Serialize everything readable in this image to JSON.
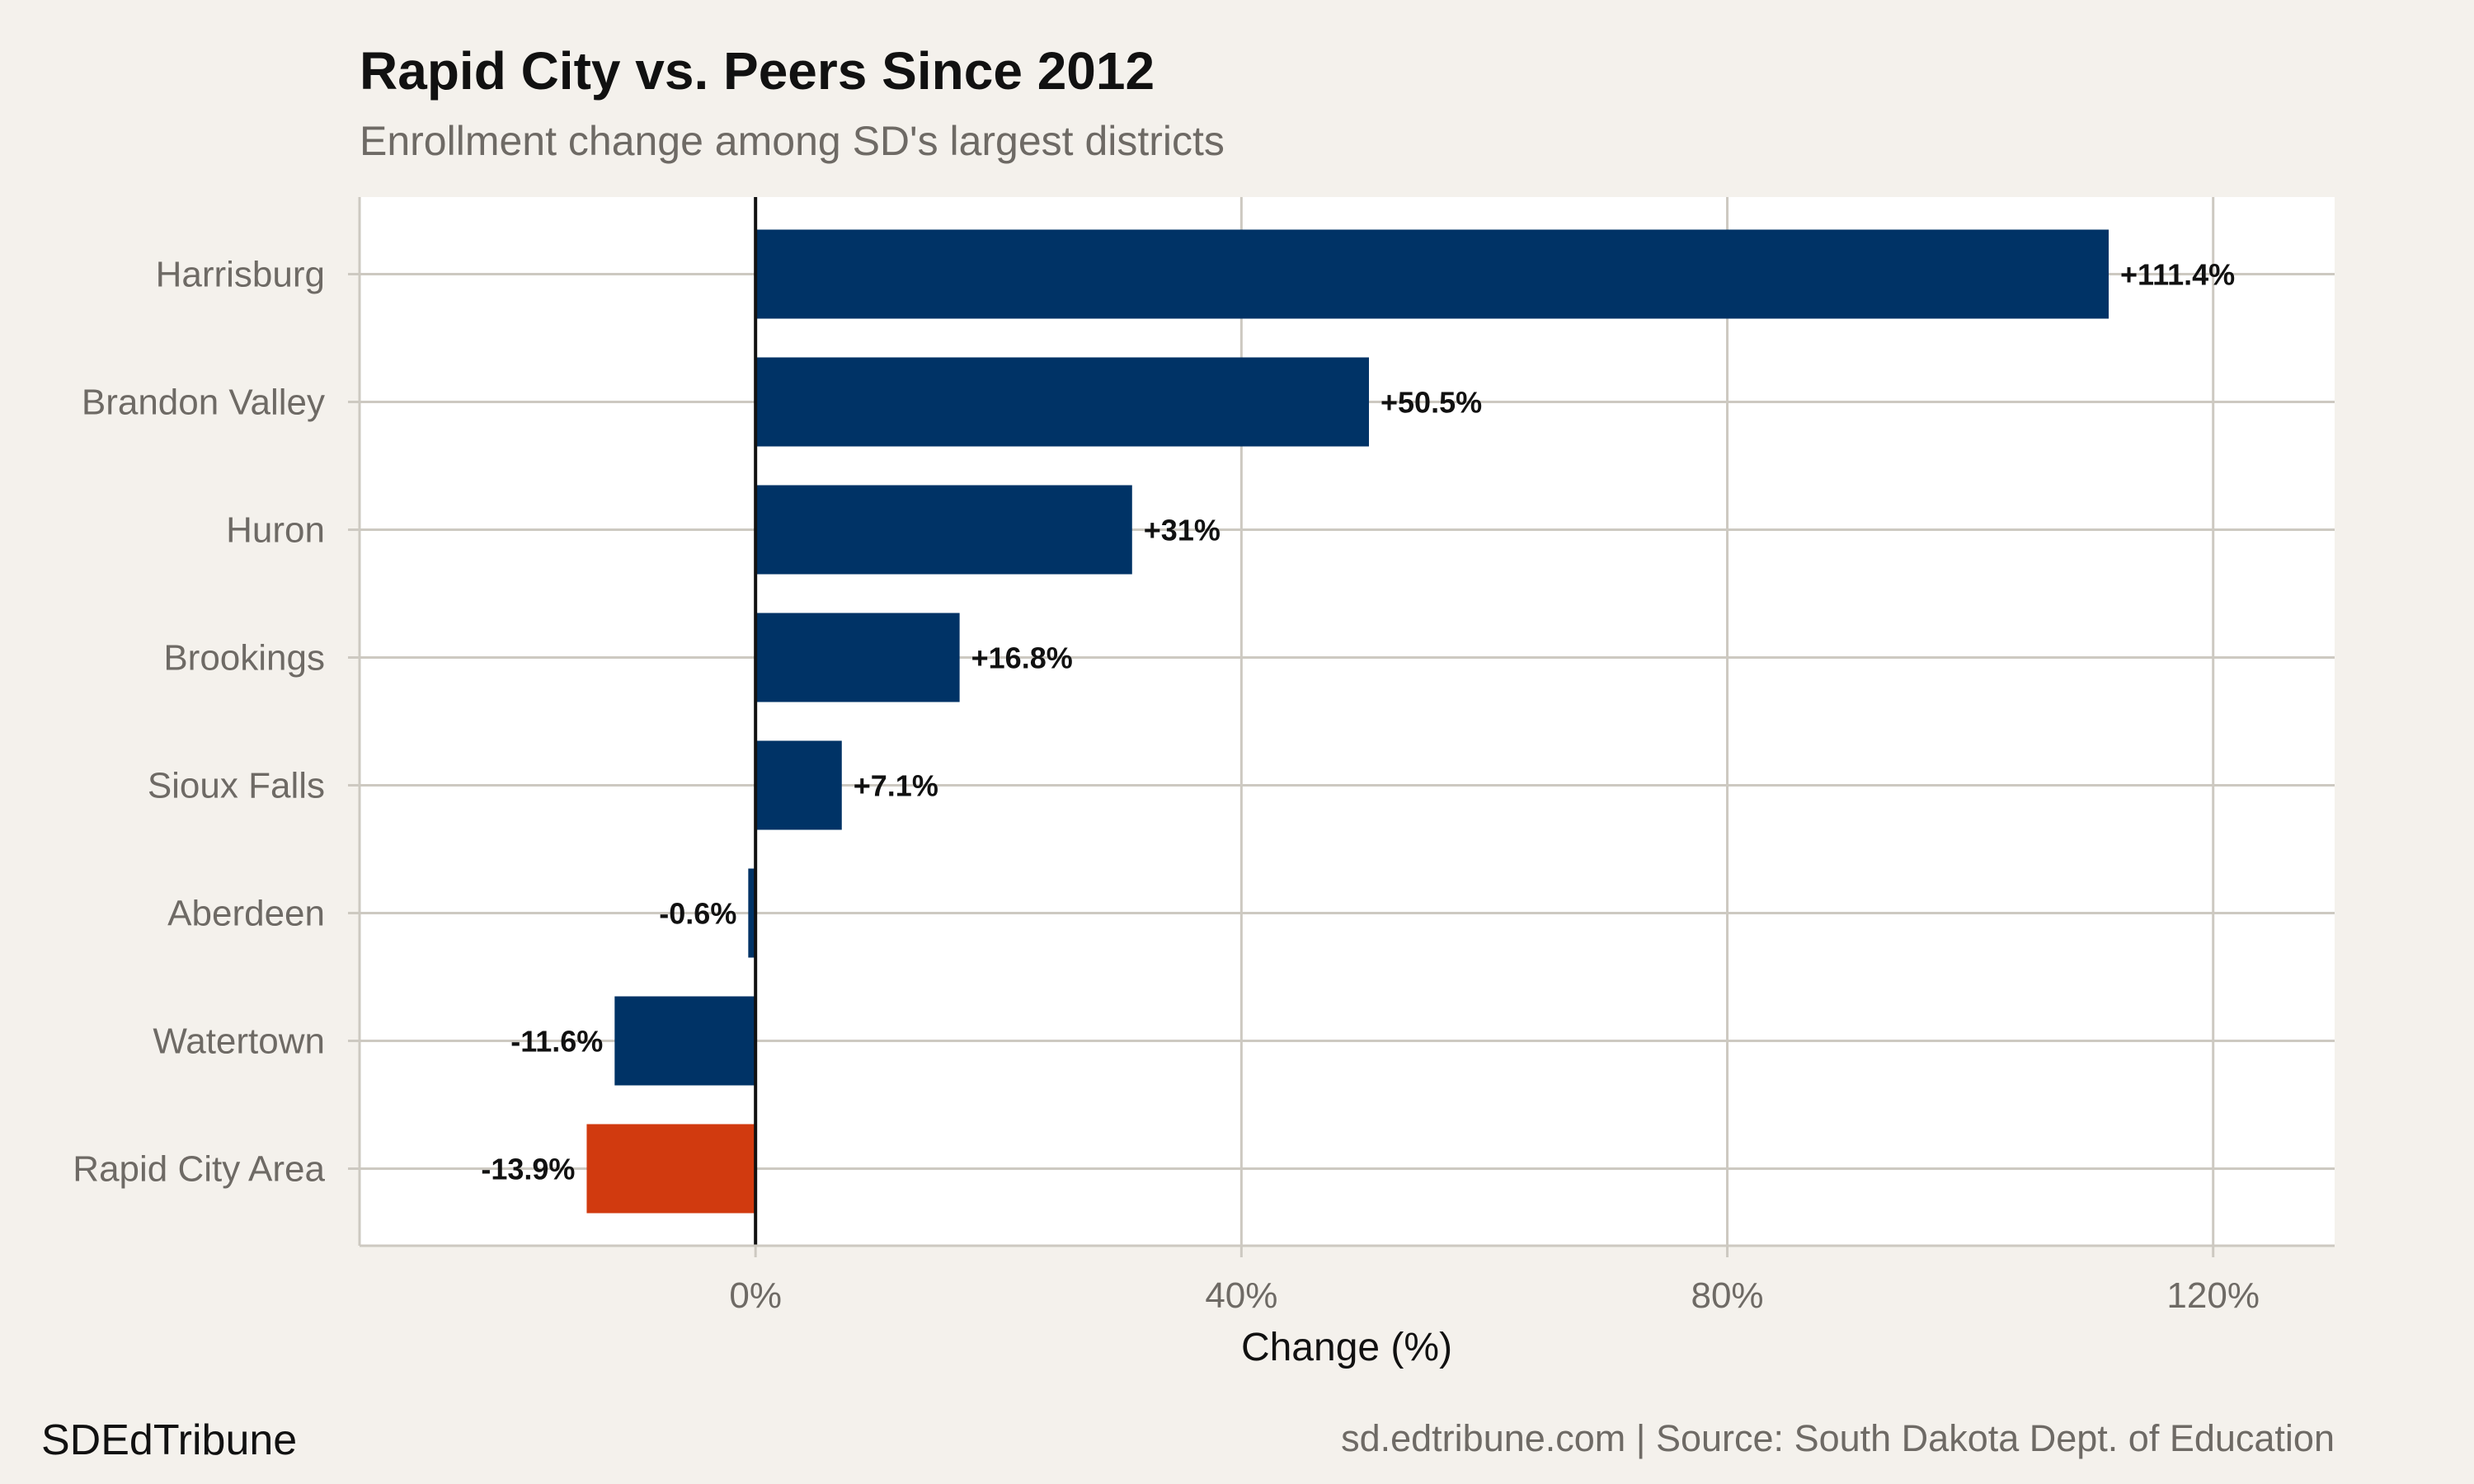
{
  "chart_data": {
    "type": "bar",
    "orientation": "horizontal",
    "title": "Rapid City vs. Peers Since 2012",
    "subtitle": "Enrollment change among SD's largest districts",
    "xlabel": "Change (%)",
    "ylabel": "",
    "xlim": [
      -32.6,
      130
    ],
    "xticks": [
      0,
      40,
      80,
      120
    ],
    "xtick_labels": [
      "0%",
      "40%",
      "80%",
      "120%"
    ],
    "grid": true,
    "categories": [
      "Harrisburg",
      "Brandon Valley",
      "Huron",
      "Brookings",
      "Sioux Falls",
      "Aberdeen",
      "Watertown",
      "Rapid City Area"
    ],
    "values": [
      111.4,
      50.5,
      31,
      16.8,
      7.1,
      -0.6,
      -11.6,
      -13.9
    ],
    "data_labels": [
      "+111.4%",
      "+50.5%",
      "+31%",
      "+16.8%",
      "+7.1%",
      "-0.6%",
      "-11.6%",
      "-13.9%"
    ],
    "highlight": "Rapid City Area",
    "colors": {
      "default": "#003366",
      "highlight": "#d13a0f",
      "background": "#f4f1ec",
      "panel": "#ffffff",
      "grid": "#cdc9c1"
    }
  },
  "footer": {
    "brand": "SDEdTribune",
    "source": "sd.edtribune.com | Source: South Dakota Dept. of Education"
  }
}
